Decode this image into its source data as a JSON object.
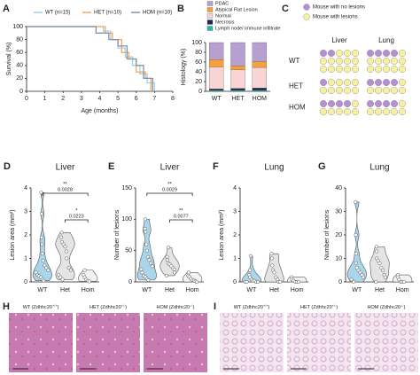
{
  "chart_data": [
    {
      "panel": "A",
      "type": "step-line",
      "xlabel": "Age (months)",
      "ylabel": "Survival (%)",
      "xlim": [
        0,
        8
      ],
      "xticks": [
        0,
        1,
        2,
        3,
        4,
        5,
        6,
        7,
        8
      ],
      "ylim": [
        0,
        100
      ],
      "yticks": [
        0,
        20,
        40,
        60,
        80,
        100
      ],
      "series": [
        {
          "name": "WT (n=15)",
          "color": "#9ed2ea",
          "x": [
            0,
            4.2,
            4.6,
            5.0,
            5.4,
            5.8,
            6.2,
            6.6,
            7.0
          ],
          "values": [
            100,
            93,
            80,
            67,
            53,
            40,
            27,
            13,
            0
          ]
        },
        {
          "name": "HET (n=10)",
          "color": "#f4a661",
          "x": [
            0,
            4.3,
            4.7,
            5.2,
            5.6,
            6.0,
            6.5,
            6.8
          ],
          "values": [
            100,
            90,
            80,
            60,
            50,
            30,
            20,
            0
          ]
        },
        {
          "name": "HOM (n=10)",
          "color": "#7d94b0",
          "x": [
            0,
            3.8,
            4.5,
            5.0,
            5.5,
            6.0,
            6.4,
            6.9
          ],
          "values": [
            100,
            90,
            80,
            70,
            50,
            40,
            20,
            0
          ]
        }
      ]
    },
    {
      "panel": "B",
      "type": "stacked-bar",
      "ylabel": "Histology (%)",
      "categories": [
        "WT",
        "HET",
        "HOM"
      ],
      "ylim": [
        0,
        100
      ],
      "yticks": [
        0,
        20,
        40,
        60,
        80,
        100
      ],
      "series": [
        {
          "name": "PDAC",
          "color": "#b79fd0",
          "values": [
            35,
            48,
            39
          ]
        },
        {
          "name": "Atypical Flat Lesion",
          "color": "#f6a03c",
          "values": [
            15,
            8,
            12
          ]
        },
        {
          "name": "Normal",
          "color": "#f9d4d4",
          "values": [
            45,
            38,
            42
          ]
        },
        {
          "name": "Necrosis",
          "color": "#1c2a4f",
          "values": [
            3,
            4,
            5
          ]
        },
        {
          "name": "Lymph node/ immune infiltrate",
          "color": "#2fb5a8",
          "values": [
            2,
            2,
            2
          ]
        }
      ]
    },
    {
      "panel": "C",
      "type": "dot-grid",
      "columns": [
        "Liver",
        "Lung"
      ],
      "legend": [
        {
          "name": "Mouse with no lesions",
          "color": "#b58fd1"
        },
        {
          "name": "Mouse with lesions",
          "color": "#f6f0a0"
        }
      ],
      "groups": [
        {
          "name": "WT",
          "counts": [
            [
              2,
              13
            ],
            [
              4,
              11
            ]
          ]
        },
        {
          "name": "HET",
          "counts": [
            [
              1,
              9
            ],
            [
              4,
              6
            ]
          ]
        },
        {
          "name": "HOM",
          "counts": [
            [
              4,
              6
            ],
            [
              4,
              6
            ]
          ]
        }
      ]
    },
    {
      "panel": "D",
      "type": "violin",
      "title": "Liver",
      "ylabel": "Lesion area (mm²)",
      "categories": [
        "WT",
        "Het",
        "Hom"
      ],
      "colors": [
        "#a9d6ec",
        "#e4e4e4",
        "#f2f2f2"
      ],
      "ylim": [
        0,
        4
      ],
      "yticks": [
        0,
        1,
        2,
        3,
        4
      ],
      "values": [
        [
          3.8,
          2.9,
          1.9,
          1.6,
          1.2,
          0.9,
          0.7,
          0.6,
          0.5,
          0.4,
          0.3,
          0.25,
          0.2,
          0.1,
          0.05
        ],
        [
          2.1,
          1.9,
          1.7,
          1.6,
          1.5,
          1.3,
          1.0,
          0.6,
          0.5,
          0.3,
          0.2,
          0.1
        ],
        [
          0.5,
          0.3,
          0.2,
          0.1,
          0.05,
          0.02
        ]
      ],
      "annotations": [
        {
          "groups": [
            "WT",
            "Hom"
          ],
          "label": "0.0028",
          "stars": "**"
        },
        {
          "groups": [
            "Het",
            "Hom"
          ],
          "label": "0.0223",
          "stars": "*"
        }
      ]
    },
    {
      "panel": "E",
      "type": "violin",
      "title": "Liver",
      "ylabel": "Number of lesions",
      "categories": [
        "WT",
        "Het",
        "Hom"
      ],
      "colors": [
        "#a9d6ec",
        "#e4e4e4",
        "#f2f2f2"
      ],
      "ylim": [
        0,
        150
      ],
      "yticks": [
        0,
        50,
        100,
        150
      ],
      "values": [
        [
          100,
          85,
          80,
          60,
          50,
          40,
          35,
          30,
          25,
          20,
          15,
          10,
          8,
          5,
          3
        ],
        [
          55,
          40,
          35,
          30,
          28,
          25,
          22,
          20,
          15,
          10
        ],
        [
          15,
          10,
          8,
          5,
          3,
          2,
          1,
          0
        ]
      ],
      "annotations": [
        {
          "groups": [
            "WT",
            "Hom"
          ],
          "label": "0.0029",
          "stars": "**"
        },
        {
          "groups": [
            "Het",
            "Hom"
          ],
          "label": "0.0077",
          "stars": "**"
        }
      ]
    },
    {
      "panel": "F",
      "type": "violin",
      "title": "Lung",
      "ylabel": "Lesion area (mm²)",
      "categories": [
        "WT",
        "Het",
        "Hom"
      ],
      "colors": [
        "#a9d6ec",
        "#e4e4e4",
        "#f2f2f2"
      ],
      "ylim": [
        0,
        4
      ],
      "yticks": [
        0,
        1,
        2,
        3,
        4
      ],
      "values": [
        [
          1.1,
          0.5,
          0.3,
          0.2,
          0.1,
          0.05,
          0.05,
          0,
          0,
          0,
          0
        ],
        [
          1.2,
          1.0,
          0.7,
          0.5,
          0.4,
          0.2,
          0.1,
          0,
          0
        ],
        [
          0.2,
          0.1,
          0.05,
          0,
          0,
          0
        ]
      ]
    },
    {
      "panel": "G",
      "type": "violin",
      "title": "Lung",
      "ylabel": "Number of lesions",
      "categories": [
        "WT",
        "Het",
        "Hom"
      ],
      "colors": [
        "#a9d6ec",
        "#e4e4e4",
        "#f2f2f2"
      ],
      "ylim": [
        0,
        40
      ],
      "yticks": [
        0,
        10,
        20,
        30,
        40
      ],
      "values": [
        [
          34,
          20,
          12,
          8,
          6,
          5,
          4,
          3,
          2,
          1,
          0
        ],
        [
          15,
          13,
          10,
          9,
          8,
          6,
          5,
          3,
          2,
          0
        ],
        [
          3,
          2,
          1,
          0,
          0,
          0
        ]
      ]
    }
  ],
  "image_panels": [
    {
      "panel": "H",
      "tissue": "liver",
      "images": [
        {
          "prefix": "WT (Zdhhc20",
          "sup": "+/+",
          "suffix": ")"
        },
        {
          "prefix": "HET (Zdhhc20",
          "sup": "+/-",
          "suffix": ")"
        },
        {
          "prefix": "HOM (Zdhhc20",
          "sup": "-/-",
          "suffix": ")"
        }
      ]
    },
    {
      "panel": "I",
      "tissue": "lung",
      "images": [
        {
          "prefix": "WT (Zdhhc20",
          "sup": "+/+",
          "suffix": ")"
        },
        {
          "prefix": "HET (Zdhhc20",
          "sup": "+/-",
          "suffix": ")"
        },
        {
          "prefix": "HOM (Zdhhc20",
          "sup": "-/-",
          "suffix": ")"
        }
      ]
    }
  ]
}
